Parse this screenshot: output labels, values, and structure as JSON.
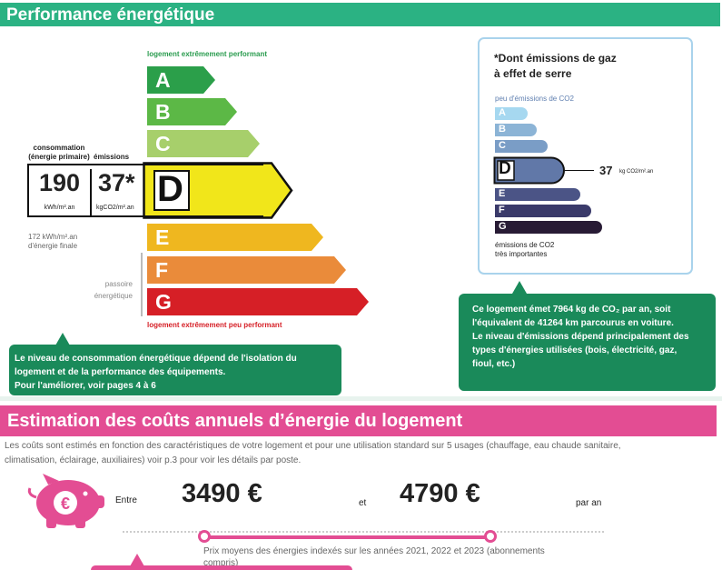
{
  "performance": {
    "title": "Performance énergétique",
    "top_label": "logement extrêmement performant",
    "bottom_label": "logement extrêmement peu performant",
    "classes": [
      {
        "letter": "A",
        "color": "#2b9f4a"
      },
      {
        "letter": "B",
        "color": "#5cb846"
      },
      {
        "letter": "C",
        "color": "#a7cf6b"
      },
      {
        "letter": "D",
        "color": "#f1e61a"
      },
      {
        "letter": "E",
        "color": "#efb71f"
      },
      {
        "letter": "F",
        "color": "#ea8b3a"
      },
      {
        "letter": "G",
        "color": "#d61f26"
      }
    ],
    "current_class": "D",
    "consumption_label": "consommation",
    "consumption_sub": "(énergie primaire)",
    "emissions_label": "émissions",
    "consumption_value": "190",
    "consumption_unit": "kWh/m².an",
    "emissions_value": "37*",
    "emissions_unit": "kgCO2/m².an",
    "final_energy": "172 kWh/m².an",
    "final_energy_label": "d'énergie finale",
    "passoire_line1": "passoire",
    "passoire_line2": "énergétique"
  },
  "ghg": {
    "title_line1": "*Dont émissions de gaz",
    "title_line2": "à effet de serre",
    "top_label": "peu d'émissions de CO2",
    "bottom_label_line1": "émissions de CO2",
    "bottom_label_line2": "très importantes",
    "classes": [
      {
        "letter": "A",
        "color": "#a6d8f0"
      },
      {
        "letter": "B",
        "color": "#8cb4d6"
      },
      {
        "letter": "C",
        "color": "#7a9dc6"
      },
      {
        "letter": "D",
        "color": "#6178a8"
      },
      {
        "letter": "E",
        "color": "#4b5486"
      },
      {
        "letter": "F",
        "color": "#3a3a6a"
      },
      {
        "letter": "G",
        "color": "#281b35"
      }
    ],
    "current_class": "D",
    "value": "37",
    "unit": "kg CO2/m².an"
  },
  "callouts": {
    "left_line1": "Le niveau de consommation énergétique dépend de l'isolation du",
    "left_line2": "logement et de la performance des équipements.",
    "left_line3": "Pour l'améliorer, voir pages 4 à 6",
    "right_line1": "Ce logement émet 7964 kg de CO₂ par an, soit",
    "right_line2": "l'équivalent de 41264  km parcourus en voiture.",
    "right_line3": "Le niveau d'émissions dépend principalement des",
    "right_line4": "types d'énergies utilisées (bois, électricité, gaz,",
    "right_line5": "fioul, etc.)"
  },
  "costs": {
    "title": "Estimation des coûts annuels d’énergie du logement",
    "desc_line1": "Les coûts sont estimés en fonction des caractéristiques de votre logement et pour une utilisation standard sur 5 usages (chauffage, eau chaude sanitaire,",
    "desc_line2": "climatisation, éclairage, auxiliaires) voir p.3 pour voir les détails par poste.",
    "between": "Entre",
    "min": "3490 €",
    "and": "et",
    "max": "4790 €",
    "per_year": "par an",
    "footnote_line1": "Prix moyens des énergies indexés sur les années 2021, 2022 et 2023 (abonnements",
    "footnote_line2": "compris)",
    "accent": "#e34d93"
  }
}
